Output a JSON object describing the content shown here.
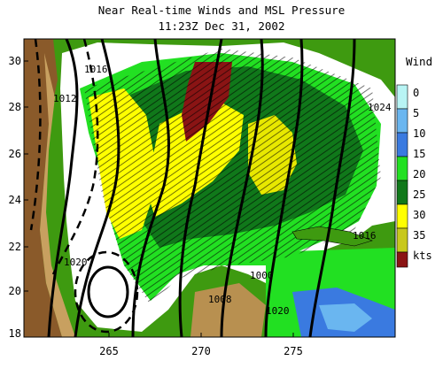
{
  "title": "Near Real-time Winds and MSL Pressure",
  "subtitle": "11:23Z Dec 31, 2002",
  "y_ticks": [
    "30",
    "28",
    "26",
    "24",
    "22",
    "20",
    "18"
  ],
  "x_ticks": [
    "265",
    "270",
    "275"
  ],
  "legend": {
    "title": "Wind",
    "units": "kts",
    "levels": [
      {
        "label": "0",
        "color": "#b8f4f4"
      },
      {
        "label": "5",
        "color": "#6ab6f0"
      },
      {
        "label": "10",
        "color": "#3a7ae0"
      },
      {
        "label": "15",
        "color": "#22e022"
      },
      {
        "label": "20",
        "color": "#10781a"
      },
      {
        "label": "25",
        "color": "#ffff00"
      },
      {
        "label": "30",
        "color": "#c8c81c"
      },
      {
        "label": "35",
        "color": "#8a1414"
      }
    ]
  },
  "isobar_labels": [
    "1012",
    "1016",
    "1020",
    "1008",
    "1000",
    "1024",
    "1016",
    "1020"
  ],
  "colors": {
    "land_green": "#3e9a10",
    "highland": "#9a6a3a",
    "ocean_white": "#ffffff",
    "isobar": "#000000"
  }
}
